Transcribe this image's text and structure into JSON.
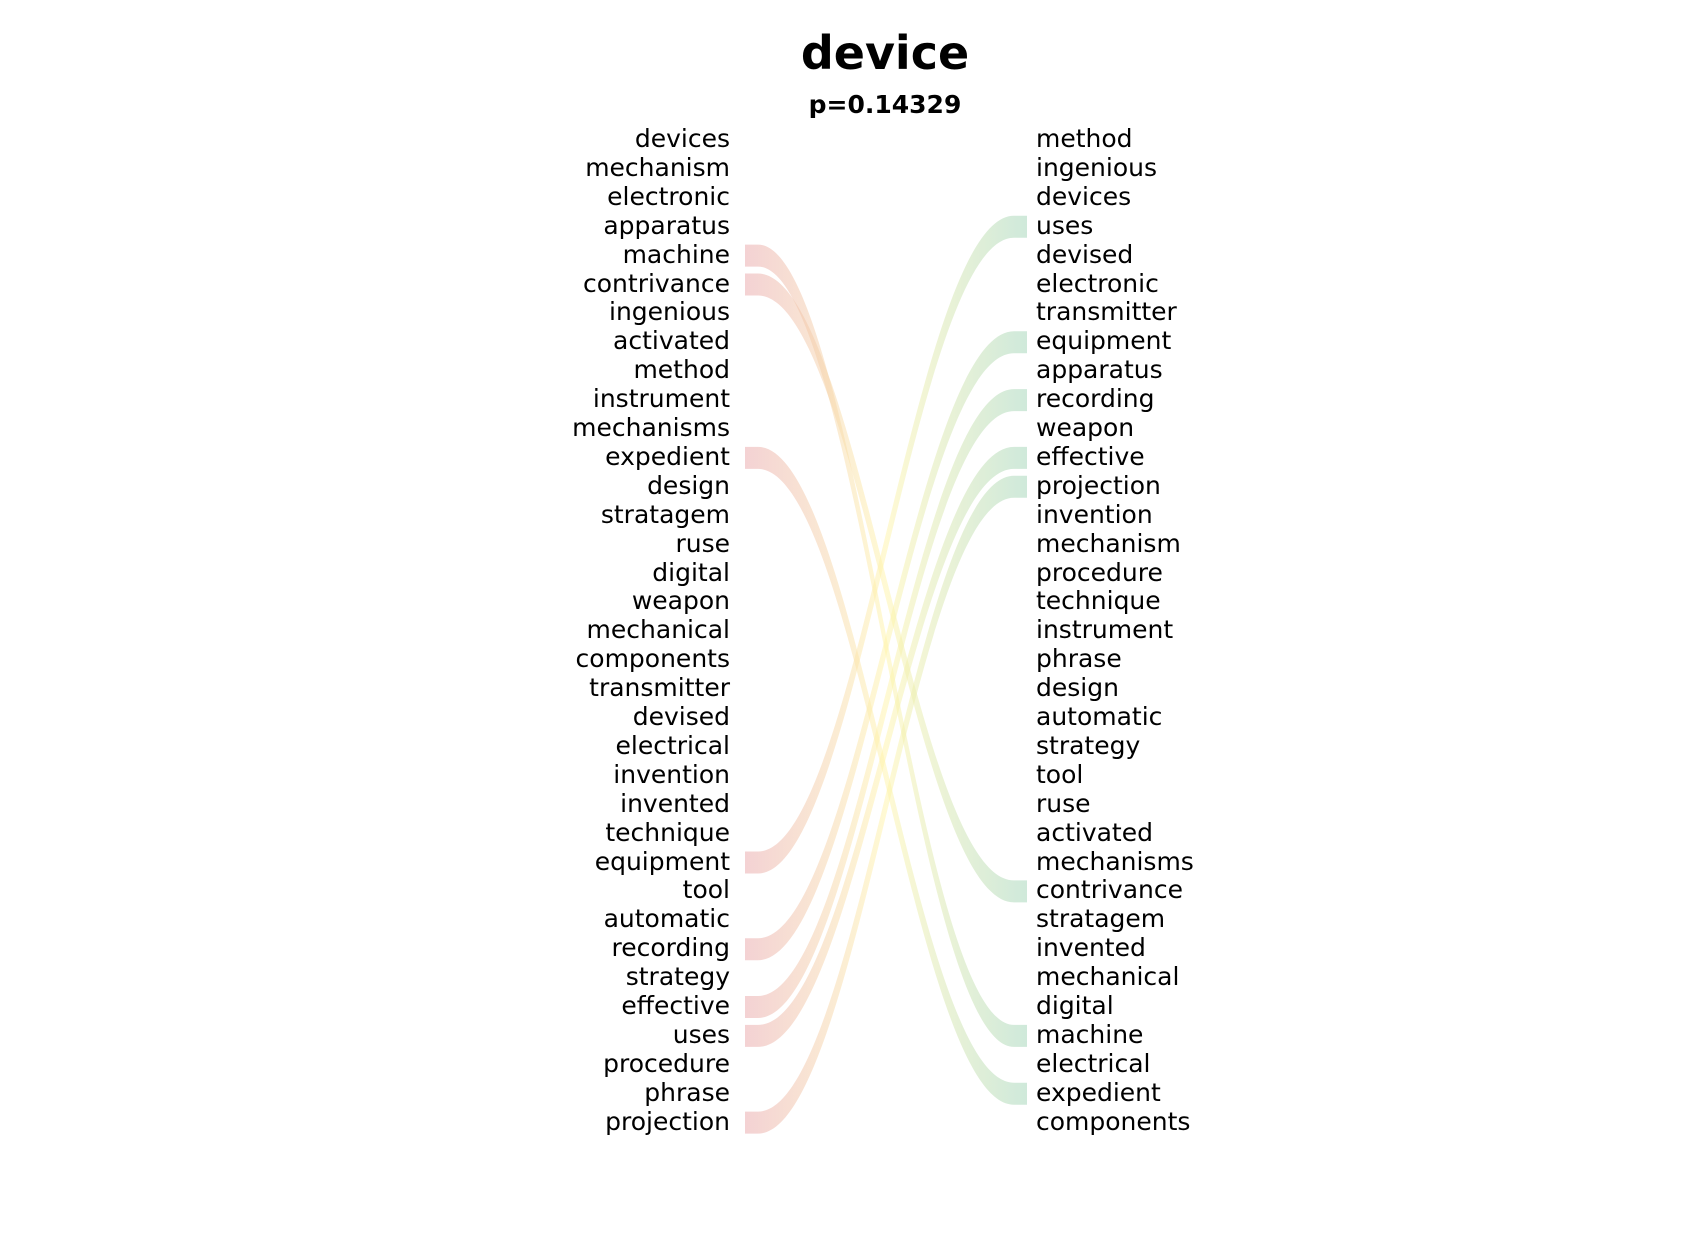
{
  "title": "device",
  "subtitle": "p=0.14329",
  "left_words": [
    "devices",
    "mechanism",
    "electronic",
    "apparatus",
    "machine",
    "contrivance",
    "ingenious",
    "activated",
    "method",
    "instrument",
    "mechanisms",
    "expedient",
    "design",
    "stratagem",
    "ruse",
    "digital",
    "weapon",
    "mechanical",
    "components",
    "transmitter",
    "devised",
    "electrical",
    "invention",
    "invented",
    "technique",
    "equipment",
    "tool",
    "automatic",
    "recording",
    "strategy",
    "effective",
    "uses",
    "procedure",
    "phrase",
    "projection"
  ],
  "right_words": [
    "method",
    "ingenious",
    "devices",
    "uses",
    "devised",
    "electronic",
    "transmitter",
    "equipment",
    "apparatus",
    "recording",
    "weapon",
    "effective",
    "projection",
    "invention",
    "mechanism",
    "procedure",
    "technique",
    "instrument",
    "phrase",
    "design",
    "automatic",
    "strategy",
    "tool",
    "ruse",
    "activated",
    "mechanisms",
    "contrivance",
    "stratagem",
    "invented",
    "mechanical",
    "digital",
    "machine",
    "electrical",
    "expedient",
    "components"
  ],
  "links": [
    {
      "from": "machine",
      "to": "machine"
    },
    {
      "from": "contrivance",
      "to": "contrivance"
    },
    {
      "from": "expedient",
      "to": "expedient"
    },
    {
      "from": "equipment",
      "to": "uses"
    },
    {
      "from": "recording",
      "to": "equipment"
    },
    {
      "from": "effective",
      "to": "recording"
    },
    {
      "from": "uses",
      "to": "effective"
    },
    {
      "from": "projection",
      "to": "projection"
    }
  ],
  "colors": {
    "left": "#e8a5a8",
    "middle": "#fff4a8",
    "right": "#9fd3b6"
  }
}
